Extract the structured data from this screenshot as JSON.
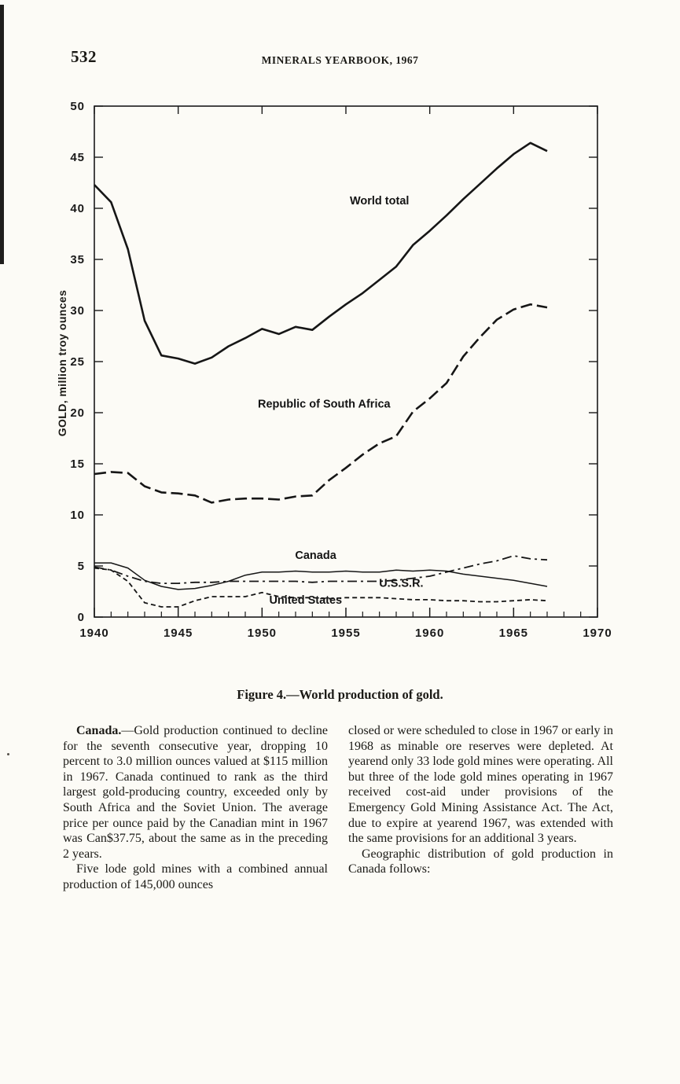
{
  "header": {
    "page_number": "532",
    "running_title": "MINERALS YEARBOOK, 1967"
  },
  "figure": {
    "caption": "Figure 4.—World production of gold."
  },
  "chart_data": {
    "type": "line",
    "title": "",
    "xlabel": "",
    "ylabel": "GOLD, million troy ounces",
    "xlim": [
      1940,
      1970
    ],
    "ylim": [
      0,
      50
    ],
    "x_start": 1940,
    "x_major_ticks": [
      1940,
      1945,
      1950,
      1955,
      1960,
      1965,
      1970
    ],
    "x_minor_step": 1,
    "y_ticks": [
      0,
      5,
      10,
      15,
      20,
      25,
      30,
      35,
      40,
      45,
      50
    ],
    "grid": false,
    "legend": "inline-labels",
    "series": [
      {
        "name": "World total",
        "dash": "",
        "width": 2.6,
        "values": [
          42.3,
          40.6,
          36.0,
          29.0,
          25.6,
          25.3,
          24.8,
          25.4,
          26.5,
          27.3,
          28.2,
          27.7,
          28.4,
          28.1,
          29.4,
          30.6,
          31.7,
          33.0,
          34.3,
          36.4,
          37.8,
          39.3,
          40.9,
          42.4,
          43.9,
          45.3,
          46.4,
          45.6
        ]
      },
      {
        "name": "Republic of South Africa",
        "dash": "15 6",
        "width": 2.6,
        "values": [
          14.0,
          14.2,
          14.1,
          12.8,
          12.2,
          12.1,
          11.9,
          11.2,
          11.5,
          11.6,
          11.6,
          11.5,
          11.8,
          11.9,
          13.4,
          14.6,
          15.9,
          17.0,
          17.7,
          20.1,
          21.4,
          22.9,
          25.5,
          27.4,
          29.1,
          30.1,
          30.6,
          30.3
        ]
      },
      {
        "name": "Canada",
        "dash": "",
        "width": 1.5,
        "values": [
          5.3,
          5.3,
          4.8,
          3.6,
          3.0,
          2.7,
          2.8,
          3.1,
          3.5,
          4.1,
          4.4,
          4.4,
          4.5,
          4.4,
          4.4,
          4.5,
          4.4,
          4.4,
          4.6,
          4.5,
          4.6,
          4.5,
          4.2,
          4.0,
          3.8,
          3.6,
          3.3,
          3.0
        ]
      },
      {
        "name": "U.S.S.R.",
        "dash": "12 5 3 5",
        "width": 1.8,
        "values": [
          4.9,
          4.6,
          4.0,
          3.5,
          3.3,
          3.3,
          3.4,
          3.4,
          3.5,
          3.5,
          3.5,
          3.5,
          3.5,
          3.4,
          3.5,
          3.5,
          3.5,
          3.5,
          3.6,
          3.8,
          4.0,
          4.4,
          4.8,
          5.2,
          5.5,
          6.0,
          5.7,
          5.6
        ]
      },
      {
        "name": "United States",
        "dash": "6 4",
        "width": 1.8,
        "values": [
          4.8,
          4.6,
          3.5,
          1.4,
          1.0,
          1.0,
          1.6,
          2.0,
          2.0,
          2.0,
          2.4,
          2.0,
          1.9,
          1.9,
          1.8,
          1.9,
          1.9,
          1.9,
          1.8,
          1.7,
          1.7,
          1.6,
          1.6,
          1.5,
          1.5,
          1.6,
          1.7,
          1.6
        ]
      }
    ],
    "labels": [
      {
        "text": "World total",
        "x": 1957.0,
        "y": 40.4
      },
      {
        "text": "Republic of South Africa",
        "x": 1953.7,
        "y": 20.5
      },
      {
        "text": "Canada",
        "x": 1953.2,
        "y": 5.7
      },
      {
        "text": "U.S.S.R.",
        "x": 1958.3,
        "y": 2.95
      },
      {
        "text": "United States",
        "x": 1952.6,
        "y": 1.3
      }
    ]
  },
  "body": {
    "left": {
      "p1_lead": "Canada.",
      "p1_text": "—Gold production continued to decline for the seventh consecutive year, dropping 10 percent to 3.0 million ounces valued at $115 million in 1967. Canada continued to rank as the third largest gold-producing country, exceeded only by South Africa and the Soviet Union. The average price per ounce paid by the Canadian mint in 1967 was Can$37.75, about the same as in the preceding 2 years.",
      "p2": "Five lode gold mines with a combined annual production of 145,000 ounces"
    },
    "right": {
      "p1": "closed or were scheduled to close in 1967 or early in 1968 as minable ore reserves were depleted. At yearend only 33 lode gold mines were operating. All but three of the lode gold mines operating in 1967 received cost-aid under provisions of the Emergency Gold Mining Assistance Act. The Act, due to expire at yearend 1967, was extended with the same provisions for an additional 3 years.",
      "p2": "Geographic distribution of gold production in Canada follows:"
    }
  }
}
